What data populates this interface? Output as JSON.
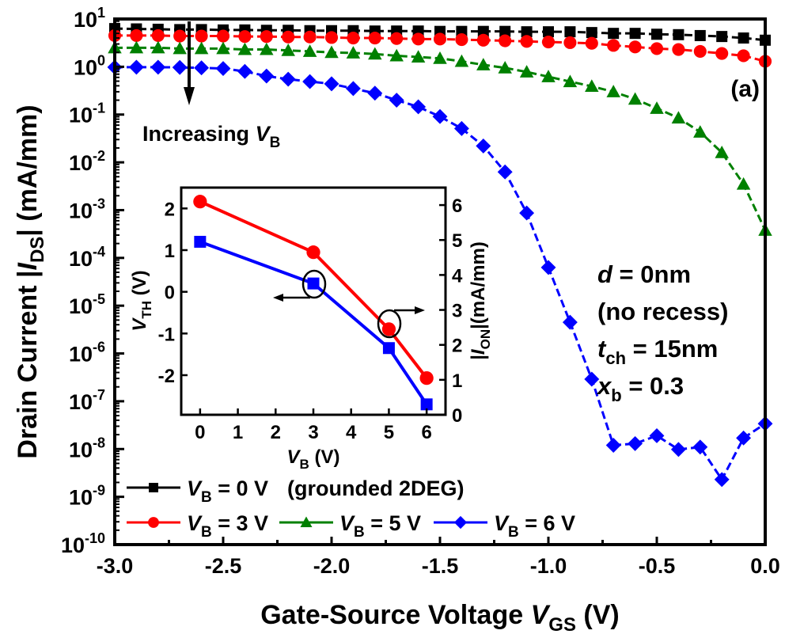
{
  "chart_data": [
    {
      "id": "main",
      "type": "line",
      "yscale": "log",
      "panel_label": "(a)",
      "xlabel": {
        "main": "Gate-Source Voltage ",
        "var": "V",
        "sub": "GS",
        "unit": " (V)"
      },
      "ylabel": {
        "main": "Drain Current |",
        "var": "I",
        "sub": "DS",
        "unit": "| (mA/mm)"
      },
      "xlim": [
        -3.0,
        0.0
      ],
      "ylim_exp": [
        -10,
        1
      ],
      "xticks": [
        -3.0,
        -2.5,
        -2.0,
        -1.5,
        -1.0,
        -0.5,
        0.0
      ],
      "xtick_labels": [
        "-3.0",
        "-2.5",
        "-2.0",
        "-1.5",
        "-1.0",
        "-0.5",
        "0.0"
      ],
      "ytick_exponents": [
        1,
        0,
        -1,
        -2,
        -3,
        -4,
        -5,
        -6,
        -7,
        -8,
        -9,
        -10
      ],
      "x": [
        -3.0,
        -2.9,
        -2.8,
        -2.7,
        -2.6,
        -2.5,
        -2.4,
        -2.3,
        -2.2,
        -2.1,
        -2.0,
        -1.9,
        -1.8,
        -1.7,
        -1.6,
        -1.5,
        -1.4,
        -1.3,
        -1.2,
        -1.1,
        -1.0,
        -0.9,
        -0.8,
        -0.7,
        -0.6,
        -0.5,
        -0.4,
        -0.3,
        -0.2,
        -0.1,
        0.0
      ],
      "series": [
        {
          "name": "V_B = 0 V",
          "legend_var": "V",
          "legend_sub": "B",
          "legend_text": " = 0 V",
          "legend_note": "(grounded 2DEG)",
          "color": "#000000",
          "marker": "square",
          "values": [
            6.3,
            6.2,
            6.1,
            6.0,
            6.0,
            5.9,
            5.9,
            5.8,
            5.8,
            5.7,
            5.7,
            5.7,
            5.6,
            5.6,
            5.6,
            5.5,
            5.5,
            5.5,
            5.5,
            5.4,
            5.4,
            5.4,
            5.2,
            5.0,
            5.0,
            4.8,
            4.7,
            4.5,
            4.3,
            4.0,
            3.6
          ]
        },
        {
          "name": "V_B = 3 V",
          "legend_var": "V",
          "legend_sub": "B",
          "legend_text": " = 3 V",
          "color": "#ff0000",
          "marker": "circle",
          "values": [
            4.5,
            4.5,
            4.5,
            4.4,
            4.4,
            4.4,
            4.3,
            4.3,
            4.2,
            4.2,
            4.1,
            4.0,
            4.0,
            3.9,
            3.8,
            3.8,
            3.7,
            3.6,
            3.5,
            3.4,
            3.3,
            3.2,
            3.1,
            2.8,
            2.6,
            2.4,
            2.3,
            2.1,
            1.9,
            1.7,
            1.3
          ]
        },
        {
          "name": "V_B = 5 V",
          "legend_var": "V",
          "legend_sub": "B",
          "legend_text": " = 5 V",
          "color": "#008000",
          "marker": "triangle",
          "values": [
            2.5,
            2.5,
            2.5,
            2.4,
            2.4,
            2.4,
            2.3,
            2.3,
            2.2,
            2.1,
            2.0,
            1.95,
            1.85,
            1.7,
            1.6,
            1.5,
            1.3,
            1.1,
            0.95,
            0.78,
            0.62,
            0.49,
            0.39,
            0.3,
            0.21,
            0.135,
            0.085,
            0.043,
            0.016,
            0.0035,
            0.00038
          ]
        },
        {
          "name": "V_B = 6 V",
          "legend_var": "V",
          "legend_sub": "B",
          "legend_text": " = 6 V",
          "color": "#0000ff",
          "marker": "diamond",
          "values": [
            0.98,
            0.98,
            0.98,
            0.97,
            0.95,
            0.92,
            0.8,
            0.64,
            0.55,
            0.49,
            0.44,
            0.35,
            0.28,
            0.2,
            0.145,
            0.091,
            0.051,
            0.022,
            0.0063,
            0.00087,
            6.3e-05,
            4.5e-06,
            2.9e-07,
            1.2e-08,
            1.3e-08,
            1.9e-08,
            9.8e-09,
            1.1e-08,
            2.3e-09,
            1.7e-08,
            3.4e-08
          ]
        }
      ],
      "annotations": {
        "arrow_text": "Increasing ",
        "arrow_var": "V",
        "arrow_sub": "B",
        "params": [
          {
            "var": "d",
            "sub": "",
            "text": " = 0nm"
          },
          {
            "var": "",
            "sub": "",
            "text": "(no recess)"
          },
          {
            "var": "t",
            "sub": "ch",
            "text": " = 15nm"
          },
          {
            "var": "x",
            "sub": "b",
            "text": " = 0.3"
          }
        ]
      },
      "legend_position": "bottom-left"
    },
    {
      "id": "inset",
      "type": "line",
      "x": [
        0,
        3,
        5,
        6
      ],
      "xlim": [
        -0.5,
        6.5
      ],
      "xticks": [
        0,
        1,
        2,
        3,
        4,
        5,
        6
      ],
      "xlabel": {
        "var": "V",
        "sub": "B",
        "unit": " (V)"
      },
      "ylabel_left": {
        "var": "V",
        "sub": "TH",
        "unit": " (V)"
      },
      "ylabel_right": {
        "pre": "|",
        "var": "I",
        "sub": "ON",
        "unit": "|(mA/mm)"
      },
      "ylim_left": [
        -2.95,
        2.5
      ],
      "yticks_left": [
        2,
        1,
        0,
        -1,
        -2
      ],
      "ylim_right": [
        0,
        6.5
      ],
      "yticks_right": [
        6,
        5,
        4,
        3,
        2,
        1,
        0
      ],
      "series": [
        {
          "name": "V_TH",
          "axis": "left",
          "color": "#0000ff",
          "marker": "square",
          "values": [
            1.2,
            0.2,
            -1.35,
            -2.7
          ]
        },
        {
          "name": "|I_ON|",
          "axis": "right",
          "color": "#ff0000",
          "marker": "circle",
          "values": [
            6.1,
            4.65,
            2.45,
            1.05
          ]
        }
      ]
    }
  ]
}
